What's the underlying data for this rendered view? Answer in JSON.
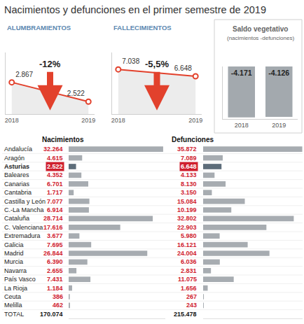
{
  "title": "Nacimientos y defunciones en el primer semestre de 2019",
  "chart_data": [
    {
      "type": "line",
      "title": "ALUMBRAMIENTOS",
      "categories": [
        "2018",
        "2019"
      ],
      "values": [
        2867,
        2522
      ],
      "value_labels": [
        "2.867",
        "2.522"
      ],
      "data_labels": true,
      "ylim": [
        2300,
        3400
      ],
      "yticks": [],
      "tick_labels": "x",
      "color": "#e2412c",
      "annotations": [
        "-12%"
      ]
    },
    {
      "type": "line",
      "title": "FALLECIMIENTOS",
      "categories": [
        "2018",
        "2019"
      ],
      "values": [
        7038,
        6648
      ],
      "value_labels": [
        "7.038",
        "6.648"
      ],
      "data_labels": true,
      "ylim": [
        4500,
        8000
      ],
      "yticks": [],
      "tick_labels": "x",
      "color": "#e2412c",
      "annotations": [
        "-5,5%"
      ]
    },
    {
      "type": "bar",
      "title": "Saldo vegetativo",
      "subtitle": "(nacimientos -defunciones)",
      "categories": [
        "2018",
        "2019"
      ],
      "values": [
        -4171,
        -4126
      ],
      "value_labels": [
        "-4.171",
        "-4.126"
      ],
      "data_labels": true,
      "ylim": [
        -4300,
        0
      ],
      "yticks": [],
      "tick_labels": "x",
      "color": "#a3a9ae"
    },
    {
      "type": "bar",
      "orientation": "horizontal",
      "data_labels": true,
      "tick_labels": false,
      "xticks": [],
      "categories": [
        "Andalucía",
        "Aragón",
        "Asturias",
        "Baleares",
        "Canarias",
        "Cantabria",
        "Castilla y León",
        "C.-La Mancha",
        "Cataluña",
        "C. Valenciana",
        "Extremadura",
        "Galicia",
        "Madrid",
        "Murcia",
        "Navarra",
        "País Vasco",
        "La Rioja",
        "Ceuta",
        "Melilla"
      ],
      "series": [
        {
          "name": "Nacimientos",
          "xlim": [
            0,
            33000
          ],
          "values": [
            32264,
            4615,
            2522,
            4352,
            6701,
            1717,
            7077,
            6914,
            28714,
            17616,
            3677,
            7695,
            26844,
            6390,
            2655,
            7431,
            1184,
            386,
            462
          ],
          "value_labels": [
            "32.264",
            "4.615",
            "2.522",
            "4.352",
            "6.701",
            "1.717",
            "7.077",
            "6.914",
            "28.714",
            "17.616",
            "3.677",
            "7.695",
            "26.844",
            "6.390",
            "2.655",
            "7.431",
            "1.184",
            "386",
            "462"
          ],
          "colors": [
            "#a7acb1",
            "#a7acb1",
            "#5d6d7a",
            "#a7acb1",
            "#a7acb1",
            "#a7acb1",
            "#a7acb1",
            "#a7acb1",
            "#a7acb1",
            "#a7acb1",
            "#a7acb1",
            "#a7acb1",
            "#a7acb1",
            "#a7acb1",
            "#a7acb1",
            "#a7acb1",
            "#a7acb1",
            "#a7acb1",
            "#a7acb1"
          ]
        },
        {
          "name": "Defunciones",
          "xlim": [
            0,
            36000
          ],
          "values": [
            35872,
            7089,
            6648,
            4133,
            8130,
            3150,
            15084,
            10199,
            32802,
            22903,
            5980,
            16121,
            24004,
            6036,
            2831,
            11075,
            1656,
            267,
            243
          ],
          "value_labels": [
            "35.872",
            "7.089",
            "6.648",
            "4.133",
            "8.130",
            "3.150",
            "15.084",
            "10.199",
            "32.802",
            "22.903",
            "5.980",
            "16.121",
            "24.004",
            "6.036",
            "2.831",
            "11.075",
            "1.656",
            "267",
            "243"
          ],
          "colors": [
            "#a7acb1",
            "#a7acb1",
            "#5d6d7a",
            "#a7acb1",
            "#a7acb1",
            "#a7acb1",
            "#a7acb1",
            "#a7acb1",
            "#a7acb1",
            "#a7acb1",
            "#a7acb1",
            "#a7acb1",
            "#a7acb1",
            "#a7acb1",
            "#a7acb1",
            "#a7acb1",
            "#a7acb1",
            "#a7acb1",
            "#a7acb1"
          ]
        }
      ],
      "total": {
        "label": "TOTAL",
        "values": [
          170074,
          215478
        ],
        "value_labels": [
          "170.074",
          "215.478"
        ]
      }
    }
  ]
}
